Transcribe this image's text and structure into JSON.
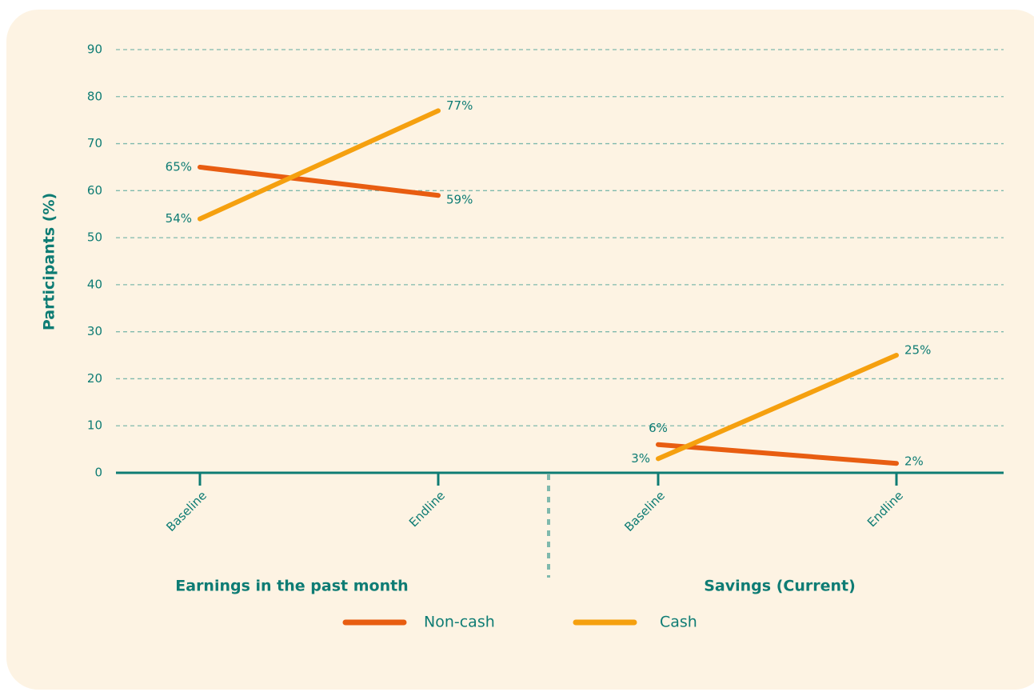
{
  "chart_data": {
    "type": "line",
    "y_label": "Participants (%)",
    "ylim": [
      0,
      90
    ],
    "yticks": [
      0,
      10,
      20,
      30,
      40,
      50,
      60,
      70,
      80,
      90
    ],
    "grid": true,
    "legend": "bottom",
    "series": [
      {
        "name": "Non-cash",
        "color": "#e85d11"
      },
      {
        "name": "Cash",
        "color": "#f5a00f"
      }
    ],
    "panels": [
      {
        "title": "Earnings in the past month",
        "categories": [
          "Baseline",
          "Endline"
        ],
        "series": [
          {
            "values": [
              65,
              59
            ],
            "value_labels": [
              "65%",
              "59%"
            ]
          },
          {
            "values": [
              54,
              77
            ],
            "value_labels": [
              "54%",
              "77%"
            ]
          }
        ]
      },
      {
        "title": "Savings (Current)",
        "categories": [
          "Baseline",
          "Endline"
        ],
        "series": [
          {
            "values": [
              6,
              2
            ],
            "value_labels": [
              "6%",
              "2%"
            ]
          },
          {
            "values": [
              3,
              25
            ],
            "value_labels": [
              "3%",
              "25%"
            ]
          }
        ]
      }
    ]
  }
}
